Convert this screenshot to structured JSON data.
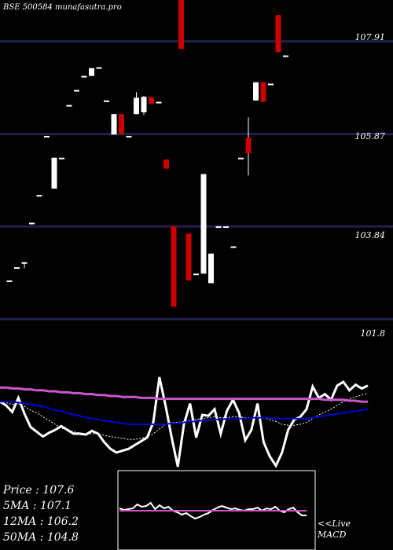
{
  "header": {
    "title": "BSE 500584  munafasutra.pro"
  },
  "price_axis": {
    "levels": [
      "107.91",
      "105.87",
      "103.84",
      "101.8"
    ]
  },
  "indicators": {
    "price": "Price   : 107.6",
    "ma5": "5MA : 107.1",
    "ma12": "12MA : 106.2",
    "ma50": "50MA : 104.8"
  },
  "macd_panel": {
    "label_line1": "<<Live",
    "label_line2": "MACD"
  },
  "colors": {
    "background": "#000000",
    "grid": "#20204a",
    "bull": "#ffffff",
    "bear": "#cc0000",
    "ma_slow": "#0000cc",
    "ma_long": "#cc55cc",
    "ma_fast": "#ffffff"
  },
  "chart_data": [
    {
      "type": "candlestick",
      "title": "BSE 500584  munafasutra.pro",
      "y_ticks": [
        107.91,
        105.87,
        103.84,
        101.8
      ],
      "ylim": [
        101.3,
        108.82
      ],
      "grid": true,
      "candles": [
        {
          "o": 102.65,
          "h": 102.65,
          "l": 102.65,
          "c": 102.65
        },
        {
          "o": 102.94,
          "h": 102.94,
          "l": 102.94,
          "c": 102.94
        },
        {
          "o": 103.05,
          "h": 103.05,
          "l": 102.92,
          "c": 103.05
        },
        {
          "o": 103.92,
          "h": 103.92,
          "l": 103.92,
          "c": 103.92
        },
        {
          "o": 104.53,
          "h": 104.53,
          "l": 104.53,
          "c": 104.53
        },
        {
          "o": 105.83,
          "h": 105.83,
          "l": 105.83,
          "c": 105.83
        },
        {
          "o": 104.67,
          "h": 105.35,
          "l": 104.67,
          "c": 105.35
        },
        {
          "o": 105.35,
          "h": 105.35,
          "l": 105.35,
          "c": 105.35
        },
        {
          "o": 106.51,
          "h": 106.51,
          "l": 106.51,
          "c": 106.51
        },
        {
          "o": 106.84,
          "h": 106.84,
          "l": 106.84,
          "c": 106.84
        },
        {
          "o": 107.15,
          "h": 107.15,
          "l": 107.15,
          "c": 107.15
        },
        {
          "o": 107.15,
          "h": 107.32,
          "l": 107.15,
          "c": 107.32
        },
        {
          "o": 107.34,
          "h": 107.34,
          "l": 107.34,
          "c": 107.34
        },
        {
          "o": 106.61,
          "h": 106.61,
          "l": 106.61,
          "c": 106.61
        },
        {
          "o": 105.86,
          "h": 106.31,
          "l": 105.86,
          "c": 106.31
        },
        {
          "o": 106.31,
          "h": 106.31,
          "l": 105.87,
          "c": 105.87
        },
        {
          "o": 105.83,
          "h": 105.83,
          "l": 105.83,
          "c": 105.83
        },
        {
          "o": 106.31,
          "h": 106.79,
          "l": 106.31,
          "c": 106.67
        },
        {
          "o": 106.35,
          "h": 106.71,
          "l": 106.29,
          "c": 106.69
        },
        {
          "o": 106.68,
          "h": 106.68,
          "l": 106.54,
          "c": 106.54
        },
        {
          "o": 106.58,
          "h": 106.58,
          "l": 106.58,
          "c": 106.58
        },
        {
          "o": 105.31,
          "h": 105.31,
          "l": 105.11,
          "c": 105.11
        },
        {
          "o": 103.84,
          "h": 103.84,
          "l": 102.07,
          "c": 102.07
        },
        {
          "o": 108.9,
          "h": 108.9,
          "l": 107.74,
          "c": 107.74
        },
        {
          "o": 103.68,
          "h": 103.68,
          "l": 102.65,
          "c": 102.65
        },
        {
          "o": 102.8,
          "h": 102.8,
          "l": 102.8,
          "c": 102.8
        },
        {
          "o": 102.8,
          "h": 104.99,
          "l": 102.8,
          "c": 104.99
        },
        {
          "o": 102.59,
          "h": 103.24,
          "l": 102.59,
          "c": 103.24
        },
        {
          "o": 103.84,
          "h": 103.84,
          "l": 103.84,
          "c": 103.84
        },
        {
          "o": 103.84,
          "h": 103.84,
          "l": 103.84,
          "c": 103.84
        },
        {
          "o": 103.4,
          "h": 103.4,
          "l": 103.4,
          "c": 103.4
        },
        {
          "o": 105.35,
          "h": 105.35,
          "l": 105.35,
          "c": 105.35
        },
        {
          "o": 105.79,
          "h": 106.24,
          "l": 104.96,
          "c": 105.45
        },
        {
          "o": 106.61,
          "h": 107.01,
          "l": 106.61,
          "c": 107.01
        },
        {
          "o": 107.01,
          "h": 107.01,
          "l": 106.58,
          "c": 106.58
        },
        {
          "o": 106.98,
          "h": 106.98,
          "l": 106.98,
          "c": 106.98
        },
        {
          "o": 108.49,
          "h": 108.49,
          "l": 107.67,
          "c": 107.67
        },
        {
          "o": 107.6,
          "h": 107.6,
          "l": 107.6,
          "c": 107.6
        }
      ]
    },
    {
      "type": "line",
      "series": [
        {
          "values": [
            74,
            70,
            63,
            78,
            61,
            47,
            42,
            37,
            41,
            44,
            48,
            44,
            40,
            40,
            39,
            43,
            40,
            31,
            24,
            20,
            22,
            24,
            28,
            32,
            36,
            52,
            100,
            70,
            36,
            5,
            50,
            72,
            36,
            60,
            59,
            66,
            40,
            64,
            76,
            62,
            33,
            44,
            72,
            31,
            16,
            6,
            20,
            44,
            55,
            58,
            66,
            90,
            78,
            82,
            76,
            91,
            95,
            86,
            92,
            88,
            91
          ]
        },
        {
          "values": [
            74,
            73,
            71,
            72,
            69,
            65,
            62,
            58,
            54,
            50,
            46,
            44,
            42,
            41,
            40,
            40,
            40,
            38,
            37,
            36,
            35,
            34,
            34,
            35,
            37,
            40,
            45,
            50,
            52,
            52,
            53,
            54,
            55,
            56,
            57,
            58,
            57,
            57,
            58,
            58,
            57,
            57,
            58,
            57,
            55,
            53,
            50,
            49,
            49,
            50,
            52,
            56,
            60,
            63,
            66,
            70,
            74,
            77,
            79,
            81,
            83
          ]
        },
        {
          "values": [
            74,
            74,
            74,
            73,
            72,
            71,
            70,
            69,
            67,
            65,
            64,
            62,
            60,
            59,
            57,
            56,
            55,
            54,
            53,
            52,
            51,
            50,
            50,
            50,
            50,
            50,
            50,
            50,
            51,
            51,
            52,
            53,
            53,
            54,
            54,
            55,
            55,
            56,
            56,
            56,
            56,
            57,
            57,
            57,
            57,
            56,
            56,
            56,
            56,
            56,
            56,
            57,
            58,
            59,
            60,
            61,
            62,
            63,
            64,
            65,
            66
          ]
        },
        {
          "values": [
            89,
            89,
            88,
            88,
            87,
            87,
            86,
            86,
            85,
            85,
            84,
            84,
            83,
            83,
            82,
            82,
            81,
            81,
            80,
            80,
            79,
            79,
            79,
            78,
            78,
            78,
            77,
            77,
            77,
            77,
            77,
            77,
            77,
            77,
            77,
            77,
            77,
            77,
            77,
            77,
            77,
            77,
            77,
            77,
            77,
            77,
            77,
            77,
            77,
            77,
            77,
            77,
            77,
            76,
            76,
            76,
            76,
            75,
            75,
            74,
            74
          ]
        }
      ]
    },
    {
      "type": "line",
      "series": [
        {
          "values": [
            53,
            51,
            52,
            53,
            58,
            55,
            56,
            60,
            52,
            57,
            53,
            55,
            50,
            48,
            45,
            47,
            43,
            40,
            42,
            45,
            47,
            51,
            54,
            56,
            54,
            52,
            53,
            51,
            50,
            52,
            52,
            54,
            50,
            53,
            52,
            55,
            50,
            48,
            52,
            54,
            48,
            44,
            44
          ]
        },
        {
          "values": [
            50,
            50,
            50,
            50,
            50,
            50,
            50,
            50,
            50,
            50,
            50,
            50,
            50,
            50,
            50,
            50,
            50,
            50,
            50,
            50,
            50,
            50,
            50,
            50,
            50,
            50,
            50,
            50,
            50,
            50,
            50,
            50,
            50,
            50,
            50,
            50,
            50,
            50,
            50,
            50,
            50,
            50,
            50
          ]
        }
      ]
    }
  ]
}
